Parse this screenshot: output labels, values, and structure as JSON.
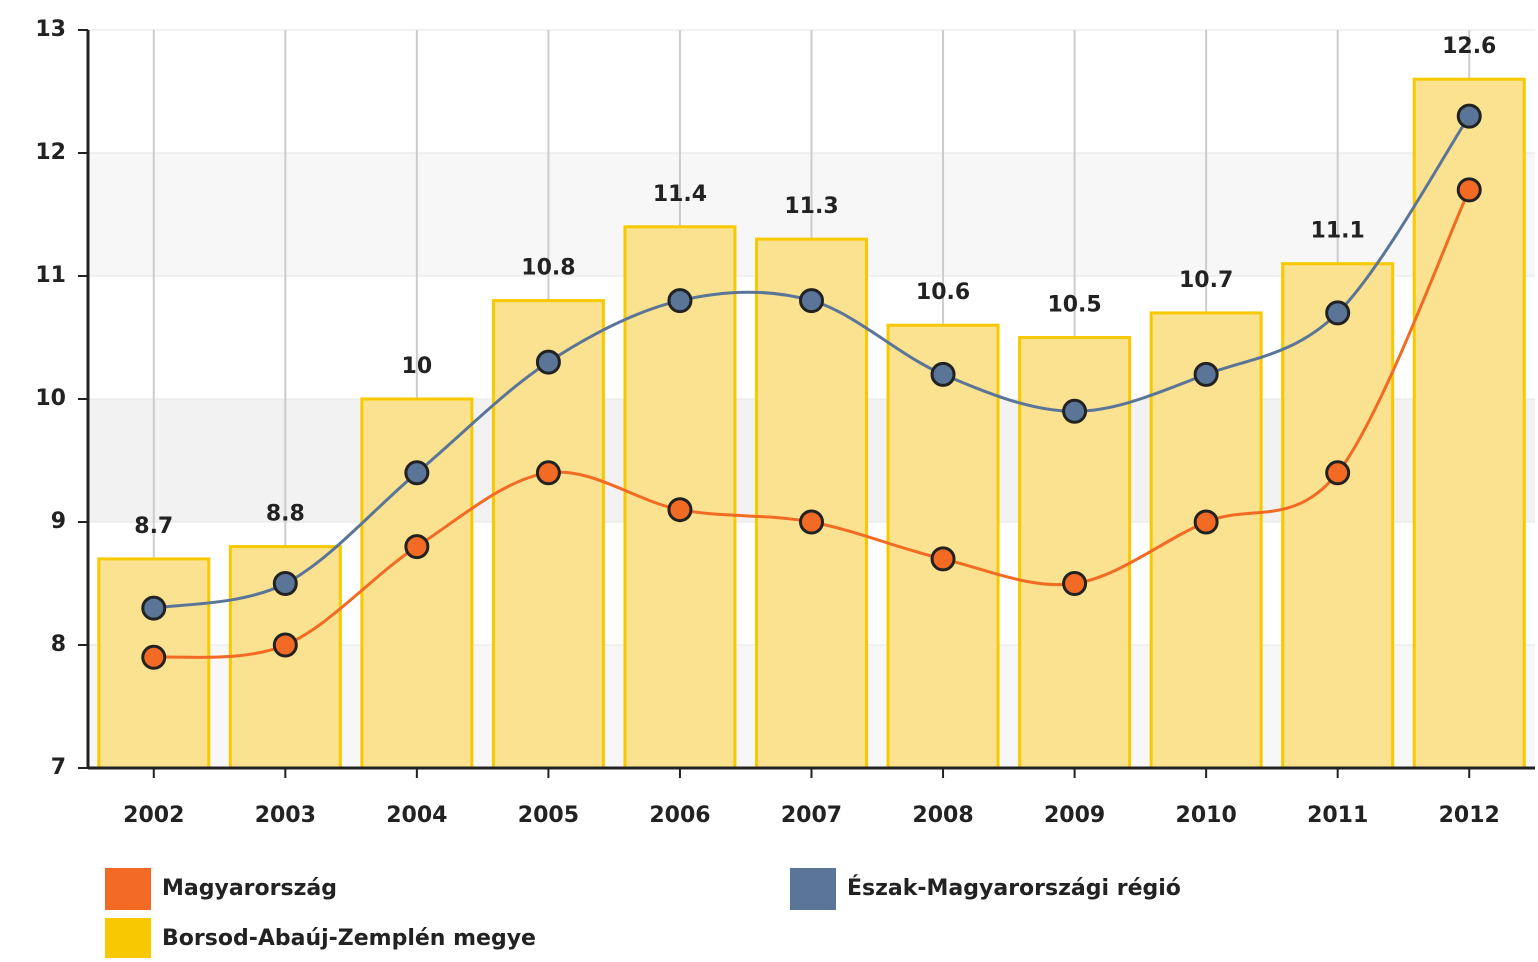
{
  "chart_data": {
    "type": "bar",
    "categories": [
      "2002",
      "2003",
      "2004",
      "2005",
      "2006",
      "2007",
      "2008",
      "2009",
      "2010",
      "2011",
      "2012"
    ],
    "series": [
      {
        "name": "Magyarország",
        "type": "line",
        "color": "#f26a24",
        "values": [
          7.9,
          8.0,
          8.8,
          9.4,
          9.1,
          9.0,
          8.7,
          8.5,
          9.0,
          9.4,
          11.7
        ]
      },
      {
        "name": "Észak-Magyarországi régió",
        "type": "line",
        "color": "#5a7598",
        "values": [
          8.3,
          8.5,
          9.4,
          10.3,
          10.8,
          10.8,
          10.2,
          9.9,
          10.2,
          10.7,
          12.3
        ]
      },
      {
        "name": "Borsod-Abaúj-Zemplén megye",
        "type": "bar",
        "color": "#f8c900",
        "values": [
          8.7,
          8.8,
          10,
          10.8,
          11.4,
          11.3,
          10.6,
          10.5,
          10.7,
          11.1,
          12.6
        ]
      }
    ],
    "ylim": [
      7,
      13
    ],
    "yticks": [
      7,
      8,
      9,
      10,
      11,
      12,
      13
    ],
    "grid": true
  }
}
